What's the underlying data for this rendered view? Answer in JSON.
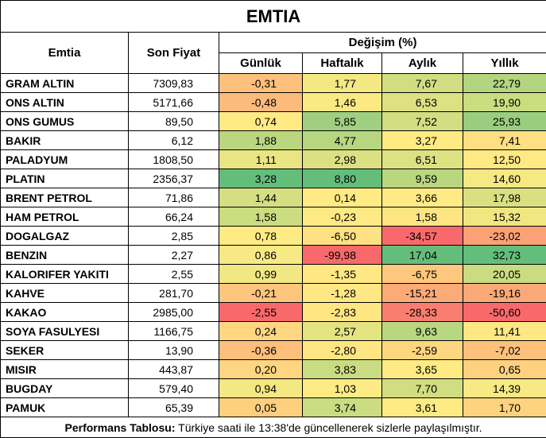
{
  "header": {
    "title": "EMTIA"
  },
  "table": {
    "columns": [
      "Emtia",
      "Son Fiyat"
    ],
    "group": "Değişim (%)",
    "subcolumns": [
      "Günlük",
      "Haftalık",
      "Aylık",
      "Yıllık"
    ],
    "rows": [
      [
        "GRAM ALTIN",
        "7309,83",
        "-0,31",
        "1,77",
        "7,67",
        "22,79"
      ],
      [
        "ONS ALTIN",
        "5171,66",
        "-0,48",
        "1,46",
        "6,53",
        "19,90"
      ],
      [
        "ONS GUMUS",
        "89,50",
        "0,74",
        "5,85",
        "7,52",
        "25,93"
      ],
      [
        "BAKIR",
        "6,12",
        "1,88",
        "4,77",
        "3,27",
        "7,41"
      ],
      [
        "PALADYUM",
        "1808,50",
        "1,11",
        "2,98",
        "6,51",
        "12,50"
      ],
      [
        "PLATIN",
        "2356,37",
        "3,28",
        "8,80",
        "9,59",
        "14,60"
      ],
      [
        "BRENT PETROL",
        "71,86",
        "1,44",
        "0,14",
        "3,66",
        "17,98"
      ],
      [
        "HAM PETROL",
        "66,24",
        "1,58",
        "-0,23",
        "1,58",
        "15,32"
      ],
      [
        "DOGALGAZ",
        "2,85",
        "0,78",
        "-6,50",
        "-34,57",
        "-23,02"
      ],
      [
        "BENZIN",
        "2,27",
        "0,86",
        "-99,98",
        "17,04",
        "32,73"
      ],
      [
        "KALORIFER YAKITI",
        "2,55",
        "0,99",
        "-1,35",
        "-6,75",
        "20,05"
      ],
      [
        "KAHVE",
        "281,70",
        "-0,21",
        "-1,28",
        "-15,21",
        "-19,16"
      ],
      [
        "KAKAO",
        "2985,00",
        "-2,55",
        "-2,83",
        "-28,33",
        "-50,60"
      ],
      [
        "SOYA FASULYESI",
        "1166,75",
        "0,24",
        "2,57",
        "9,63",
        "11,41"
      ],
      [
        "SEKER",
        "13,90",
        "-0,36",
        "-2,80",
        "-2,59",
        "-7,02"
      ],
      [
        "MISIR",
        "443,87",
        "0,20",
        "3,83",
        "3,65",
        "0,65"
      ],
      [
        "BUGDAY",
        "579,40",
        "0,94",
        "1,03",
        "7,70",
        "14,39"
      ],
      [
        "PAMUK",
        "65,39",
        "0,05",
        "3,74",
        "3,61",
        "1,70"
      ]
    ]
  },
  "footer": {
    "label": "Performans Tablosu:",
    "text": "Türkiye saati ile 13:38'de güncellenerek sizlerle paylaşılmıştır."
  }
}
